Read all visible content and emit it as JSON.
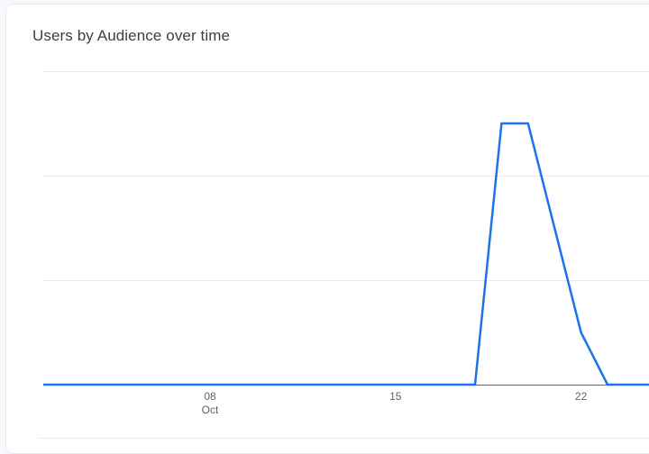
{
  "card": {
    "title": "Users by Audience over time"
  },
  "chart_data": {
    "type": "line",
    "title": "Users by Audience over time",
    "xlabel": "",
    "ylabel": "",
    "x_tick_labels": [
      {
        "day": "08",
        "month": "Oct",
        "date": "2023-10-08"
      },
      {
        "day": "15",
        "month": "",
        "date": "2023-10-15"
      },
      {
        "day": "22",
        "month": "",
        "date": "2023-10-22"
      }
    ],
    "x_range": [
      "2023-10-01",
      "2023-10-25"
    ],
    "ylim": [
      0,
      3
    ],
    "y_gridlines": [
      0,
      1,
      2,
      3
    ],
    "grid": true,
    "legend": "none",
    "series": [
      {
        "color": "#1a73e8",
        "points": [
          {
            "x": "2023-10-01",
            "y": 0
          },
          {
            "x": "2023-10-18",
            "y": 0
          },
          {
            "x": "2023-10-19",
            "y": 2.5
          },
          {
            "x": "2023-10-20",
            "y": 2.5
          },
          {
            "x": "2023-10-21",
            "y": 1.5
          },
          {
            "x": "2023-10-22",
            "y": 0.5
          },
          {
            "x": "2023-10-23",
            "y": 0
          },
          {
            "x": "2023-10-25",
            "y": 0
          }
        ]
      }
    ]
  },
  "colors": {
    "line": "#1a73e8",
    "grid": "#e8eaed",
    "baseline": "#5f6368",
    "text": "#3c4043",
    "tick_text": "#5f6368"
  }
}
